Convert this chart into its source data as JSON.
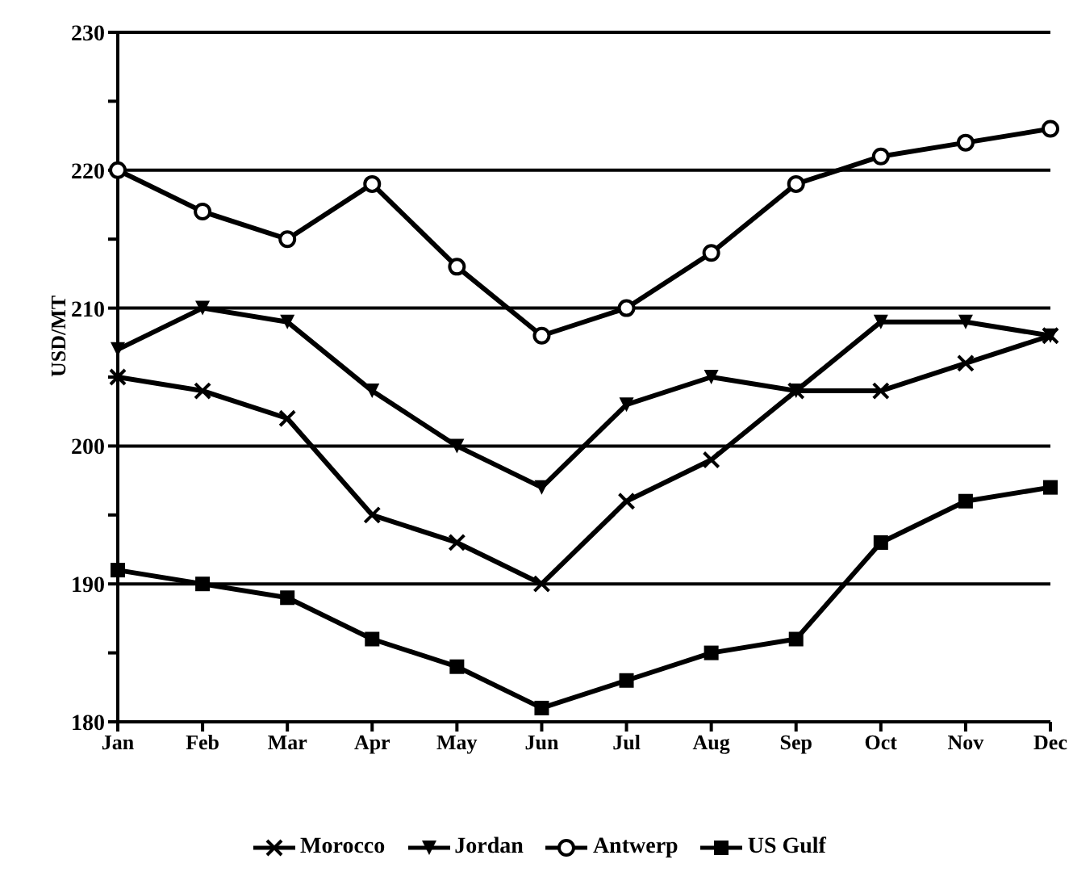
{
  "chart_data": {
    "type": "line",
    "ylabel": "USD/MT",
    "categories": [
      "Jan",
      "Feb",
      "Mar",
      "Apr",
      "May",
      "Jun",
      "Jul",
      "Aug",
      "Sep",
      "Oct",
      "Nov",
      "Dec"
    ],
    "series": [
      {
        "name": "Morocco",
        "color": "#000000",
        "marker": "cross",
        "values": [
          205,
          204,
          202,
          195,
          193,
          190,
          196,
          199,
          204,
          204,
          206,
          208
        ]
      },
      {
        "name": "Jordan",
        "color": "#000000",
        "marker": "triangle",
        "values": [
          207,
          210,
          209,
          204,
          200,
          197,
          203,
          205,
          204,
          209,
          209,
          208
        ]
      },
      {
        "name": "Antwerp",
        "color": "#000000",
        "marker": "circle",
        "values": [
          220,
          217,
          215,
          219,
          213,
          208,
          210,
          214,
          219,
          221,
          222,
          223
        ]
      },
      {
        "name": "US Gulf",
        "color": "#000000",
        "marker": "square",
        "values": [
          191,
          190,
          189,
          186,
          184,
          181,
          183,
          185,
          186,
          193,
          196,
          197
        ]
      }
    ],
    "ylim": [
      180,
      230
    ],
    "yticks": [
      180,
      {
        "value": 185,
        "label": null
      },
      190,
      {
        "value": 195,
        "label": null
      },
      200,
      {
        "value": 205,
        "label": null
      },
      210,
      {
        "value": 215,
        "label": null
      },
      220,
      {
        "value": 225,
        "label": null
      },
      230
    ],
    "grid": "y",
    "legend": "bottom",
    "line_style": "solid"
  }
}
